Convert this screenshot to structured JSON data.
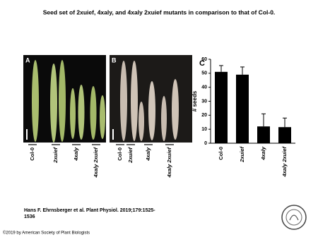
{
  "header": {
    "title": "Seed set of 2xuief, 4xaly, and 4xaly 2xuief mutants in comparison to that of Col-0."
  },
  "panels": {
    "A": {
      "label": "A",
      "labels": [
        "Col-0",
        "2xuief",
        "4xaly",
        "4xaly 2xuief"
      ]
    },
    "B": {
      "label": "B",
      "labels": [
        "Col-0",
        "2xuief",
        "4xaly",
        "4xaly 2xuief"
      ]
    }
  },
  "chart_data": {
    "type": "bar",
    "panel_label": "C",
    "ylabel": "# seeds",
    "categories": [
      "Col-0",
      "2xuief",
      "4xaly",
      "4xaly 2xuief"
    ],
    "values": [
      51,
      49,
      12,
      11.5
    ],
    "errors": [
      4.5,
      5.5,
      9,
      6.5
    ],
    "color": "#000000",
    "ylim": [
      0,
      60
    ],
    "yticks": [
      0,
      10,
      20,
      30,
      40,
      50,
      60
    ]
  },
  "citation": "Hans F. Ehrnsberger et al. Plant Physiol. 2019;179:1525-1536",
  "copyright": "©2019 by American Society of Plant Biologists"
}
